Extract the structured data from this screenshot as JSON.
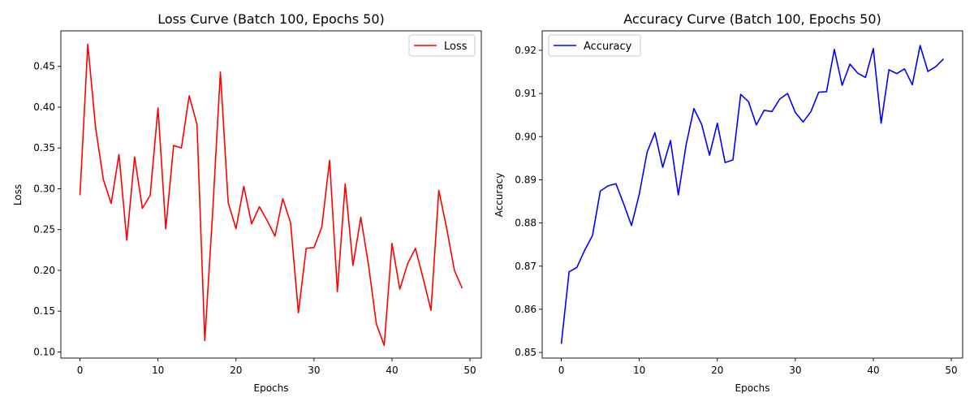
{
  "chart_data": [
    {
      "type": "line",
      "title": "Loss Curve (Batch 100, Epochs 50)",
      "xlabel": "Epochs",
      "ylabel": "Loss",
      "xlim": [
        -2.45,
        51.45
      ],
      "ylim": [
        0.0925,
        0.4935
      ],
      "xticks": [
        0,
        10,
        20,
        30,
        40,
        50
      ],
      "xtick_labels": [
        "0",
        "10",
        "20",
        "30",
        "40",
        "50"
      ],
      "yticks": [
        0.1,
        0.15,
        0.2,
        0.25,
        0.3,
        0.35,
        0.4,
        0.45
      ],
      "ytick_labels": [
        "0.10",
        "0.15",
        "0.20",
        "0.25",
        "0.30",
        "0.35",
        "0.40",
        "0.45"
      ],
      "legend_position": "top-right",
      "grid": false,
      "series": [
        {
          "name": "Loss",
          "color": "#ff0000",
          "x": [
            0,
            1,
            2,
            3,
            4,
            5,
            6,
            7,
            8,
            9,
            10,
            11,
            12,
            13,
            14,
            15,
            16,
            17,
            18,
            19,
            20,
            21,
            22,
            23,
            24,
            25,
            26,
            27,
            28,
            29,
            30,
            31,
            32,
            33,
            34,
            35,
            36,
            37,
            38,
            39,
            40,
            41,
            42,
            43,
            44,
            45,
            46,
            47,
            48,
            49
          ],
          "values": [
            0.292,
            0.477,
            0.375,
            0.311,
            0.282,
            0.342,
            0.237,
            0.339,
            0.276,
            0.292,
            0.399,
            0.251,
            0.353,
            0.35,
            0.414,
            0.379,
            0.114,
            0.27,
            0.443,
            0.283,
            0.251,
            0.303,
            0.257,
            0.278,
            0.261,
            0.242,
            0.288,
            0.258,
            0.148,
            0.227,
            0.228,
            0.253,
            0.335,
            0.174,
            0.306,
            0.206,
            0.265,
            0.206,
            0.134,
            0.108,
            0.233,
            0.177,
            0.208,
            0.227,
            0.19,
            0.151,
            0.298,
            0.252,
            0.2,
            0.178
          ]
        }
      ]
    },
    {
      "type": "line",
      "title": "Accuracy Curve (Batch 100, Epochs 50)",
      "xlabel": "Epochs",
      "ylabel": "Accuracy",
      "xlim": [
        -2.45,
        51.45
      ],
      "ylim": [
        0.8487,
        0.9245
      ],
      "xticks": [
        0,
        10,
        20,
        30,
        40,
        50
      ],
      "xtick_labels": [
        "0",
        "10",
        "20",
        "30",
        "40",
        "50"
      ],
      "yticks": [
        0.85,
        0.86,
        0.87,
        0.88,
        0.89,
        0.9,
        0.91,
        0.92
      ],
      "ytick_labels": [
        "0.85",
        "0.86",
        "0.87",
        "0.88",
        "0.89",
        "0.90",
        "0.91",
        "0.92"
      ],
      "legend_position": "top-left",
      "grid": false,
      "series": [
        {
          "name": "Accuracy",
          "color": "#0000ff",
          "x": [
            0,
            1,
            2,
            3,
            4,
            5,
            6,
            7,
            8,
            9,
            10,
            11,
            12,
            13,
            14,
            15,
            16,
            17,
            18,
            19,
            20,
            21,
            22,
            23,
            24,
            25,
            26,
            27,
            28,
            29,
            30,
            31,
            32,
            33,
            34,
            35,
            36,
            37,
            38,
            39,
            40,
            41,
            42,
            43,
            44,
            45,
            46,
            47,
            48,
            49
          ],
          "values": [
            0.852,
            0.8687,
            0.8697,
            0.8737,
            0.8771,
            0.8874,
            0.8886,
            0.8891,
            0.8844,
            0.8794,
            0.8867,
            0.8964,
            0.9009,
            0.8929,
            0.8991,
            0.8865,
            0.8981,
            0.9065,
            0.9028,
            0.8957,
            0.9031,
            0.894,
            0.8946,
            0.9098,
            0.9081,
            0.9027,
            0.9061,
            0.9058,
            0.9087,
            0.91,
            0.9056,
            0.9034,
            0.9058,
            0.9103,
            0.9104,
            0.9202,
            0.9119,
            0.9168,
            0.9147,
            0.9137,
            0.9204,
            0.9031,
            0.9155,
            0.9146,
            0.9157,
            0.912,
            0.9211,
            0.9151,
            0.9162,
            0.918
          ]
        }
      ]
    }
  ]
}
